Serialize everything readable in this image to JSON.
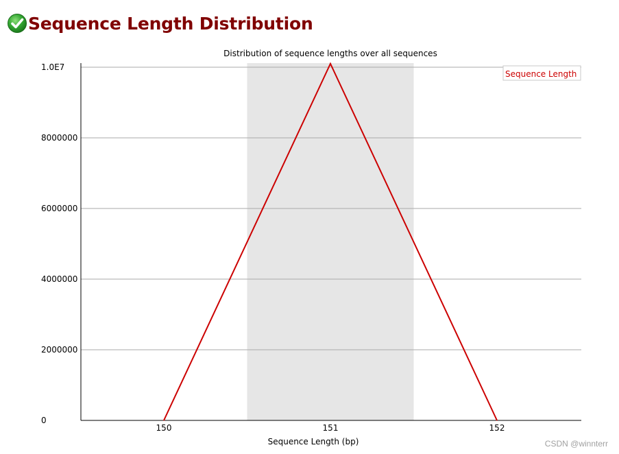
{
  "page": {
    "title": "Sequence Length Distribution",
    "status_icon": "check-circle-icon",
    "status_color": "#2e9b2e"
  },
  "colors": {
    "title": "#800000",
    "series": "#cc0000",
    "shaded_band": "#e6e6e6",
    "gridline": "#aaaaaa"
  },
  "chart_data": {
    "type": "line",
    "title": "Distribution of sequence lengths over all sequences",
    "xlabel": "Sequence Length (bp)",
    "ylabel": "",
    "categories": [
      "150",
      "151",
      "152"
    ],
    "series": [
      {
        "name": "Sequence Length",
        "values": [
          0,
          10100000,
          0
        ]
      }
    ],
    "ylim": [
      0,
      10000000
    ],
    "yticks": [
      0,
      2000000,
      4000000,
      6000000,
      8000000,
      10000000
    ],
    "ytick_labels": [
      "0",
      "2000000",
      "4000000",
      "6000000",
      "8000000",
      "1.0E7"
    ],
    "shaded_band": "151",
    "grid": true,
    "legend": "top-right"
  },
  "watermark": "CSDN @winnterr"
}
